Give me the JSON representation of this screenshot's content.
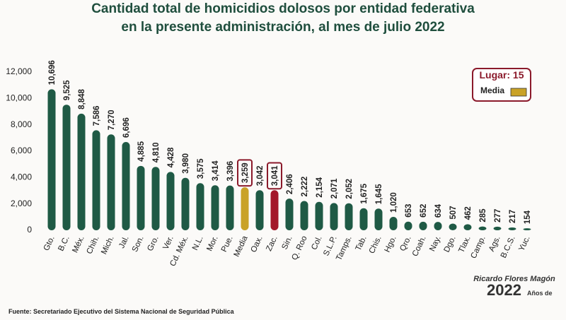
{
  "chart_data": {
    "type": "bar",
    "title": "Cantidad total de homicidios dolosos por entidad federativa",
    "subtitle": "en la presente administración, al mes de julio 2022",
    "categories": [
      "Gto.",
      "B.C.",
      "Méx.",
      "Chih.",
      "Mich.",
      "Jal.",
      "Son.",
      "Gro.",
      "Ver.",
      "Cd. Méx.",
      "N.L.",
      "Mor.",
      "Pue.",
      "Media",
      "Oax.",
      "Zac.",
      "Sin.",
      "Q. Roo",
      "Col.",
      "S.L.P.",
      "Tamps.",
      "Tab.",
      "Chis.",
      "Hgo.",
      "Qro.",
      "Coah.",
      "Nay.",
      "Dgo.",
      "Tlax.",
      "Camp.",
      "Ags.",
      "B.C.S.",
      "Yuc."
    ],
    "values": [
      10696,
      9525,
      8848,
      7586,
      7270,
      6696,
      4885,
      4810,
      4428,
      3980,
      3575,
      3414,
      3396,
      3259,
      3042,
      3041,
      2406,
      2222,
      2154,
      2071,
      2052,
      1675,
      1645,
      1020,
      653,
      652,
      634,
      507,
      462,
      285,
      277,
      217,
      154
    ],
    "value_labels": [
      "10,696",
      "9,525",
      "8,848",
      "7,586",
      "7,270",
      "6,696",
      "4,885",
      "4,810",
      "4,428",
      "3,980",
      "3,575",
      "3,414",
      "3,396",
      "3,259",
      "3,042",
      "3,041",
      "2,406",
      "2,222",
      "2,154",
      "2,071",
      "2,052",
      "1,675",
      "1,645",
      "1,020",
      "653",
      "652",
      "634",
      "507",
      "462",
      "285",
      "277",
      "217",
      "154"
    ],
    "colors": [
      "#1f5a45",
      "#1f5a45",
      "#1f5a45",
      "#1f5a45",
      "#1f5a45",
      "#1f5a45",
      "#1f5a45",
      "#1f5a45",
      "#1f5a45",
      "#1f5a45",
      "#1f5a45",
      "#1f5a45",
      "#1f5a45",
      "#c9a227",
      "#1f5a45",
      "#a3182a",
      "#1f5a45",
      "#1f5a45",
      "#1f5a45",
      "#1f5a45",
      "#1f5a45",
      "#1f5a45",
      "#1f5a45",
      "#1f5a45",
      "#1f5a45",
      "#1f5a45",
      "#1f5a45",
      "#1f5a45",
      "#1f5a45",
      "#1f5a45",
      "#1f5a45",
      "#1f5a45",
      "#1f5a45"
    ],
    "highlighted": [
      13,
      15
    ],
    "ylim": [
      0,
      12000
    ],
    "yticks": [
      0,
      {
        "value": 2000,
        "label": "2,000"
      },
      {
        "value": 4000,
        "label": "4,000"
      },
      {
        "value": 6000,
        "label": "6,000"
      },
      {
        "value": 8000,
        "label": "8,000"
      },
      {
        "value": 10000,
        "label": "10,000"
      },
      {
        "value": 12000,
        "label": "12,000"
      }
    ],
    "grid": false,
    "legend": {
      "title": "Lugar: 15",
      "label": "Media",
      "color": "#c9a227"
    },
    "source": "Fuente: Secretariado Ejecutivo del Sistema Nacional de Seguridad Pública"
  },
  "logo": {
    "year": "2022",
    "name": "Ricardo Flores Magón",
    "caption": "Años de"
  }
}
